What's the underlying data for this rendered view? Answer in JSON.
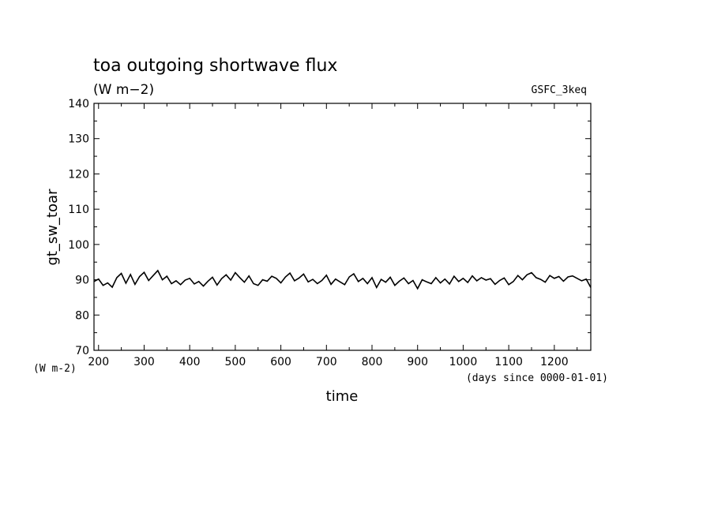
{
  "chart_data": {
    "type": "line",
    "title": "toa outgoing shortwave flux",
    "subtitle": "(W m−2)",
    "dataset_label": "GSFC_3keq",
    "ylabel": "gt_sw_toar",
    "yunits": "(W m-2)",
    "xlabel": "time",
    "xunits": "(days since 0000-01-01)",
    "xlim": [
      190,
      1280
    ],
    "ylim": [
      70,
      140
    ],
    "xticks": [
      200,
      300,
      400,
      500,
      600,
      700,
      800,
      900,
      1000,
      1100,
      1200
    ],
    "yticks": [
      70,
      80,
      90,
      100,
      110,
      120,
      130,
      140
    ],
    "grid": false,
    "line_color": "#000000",
    "series": [
      {
        "x": [
          190,
          200,
          210,
          220,
          230,
          240,
          250,
          260,
          270,
          280,
          290,
          300,
          310,
          320,
          330,
          340,
          350,
          360,
          370,
          380,
          390,
          400,
          410,
          420,
          430,
          440,
          450,
          460,
          470,
          480,
          490,
          500,
          510,
          520,
          530,
          540,
          550,
          560,
          570,
          580,
          590,
          600,
          610,
          620,
          630,
          640,
          650,
          660,
          670,
          680,
          690,
          700,
          710,
          720,
          730,
          740,
          750,
          760,
          770,
          780,
          790,
          800,
          810,
          820,
          830,
          840,
          850,
          860,
          870,
          880,
          890,
          900,
          910,
          920,
          930,
          940,
          950,
          960,
          970,
          980,
          990,
          1000,
          1010,
          1020,
          1030,
          1040,
          1050,
          1060,
          1070,
          1080,
          1090,
          1100,
          1110,
          1120,
          1130,
          1140,
          1150,
          1160,
          1170,
          1180,
          1190,
          1200,
          1210,
          1220,
          1230,
          1240,
          1250,
          1260,
          1270,
          1280
        ],
        "values": [
          89.5,
          90.2,
          88.4,
          89.1,
          87.9,
          90.6,
          91.8,
          89.0,
          91.5,
          88.7,
          90.9,
          92.1,
          89.8,
          91.2,
          92.6,
          90.0,
          91.0,
          88.9,
          89.7,
          88.6,
          89.9,
          90.4,
          88.8,
          89.5,
          88.2,
          89.6,
          90.7,
          88.5,
          90.3,
          91.4,
          89.9,
          92.0,
          90.6,
          89.3,
          91.1,
          88.9,
          88.4,
          90.0,
          89.6,
          91.0,
          90.4,
          89.1,
          90.8,
          91.9,
          89.7,
          90.5,
          91.6,
          89.4,
          90.1,
          88.9,
          89.8,
          91.3,
          88.7,
          90.2,
          89.4,
          88.6,
          90.8,
          91.7,
          89.5,
          90.4,
          88.9,
          90.6,
          87.8,
          90.1,
          89.3,
          90.7,
          88.4,
          89.6,
          90.5,
          88.9,
          89.8,
          87.5,
          90.0,
          89.4,
          88.9,
          90.6,
          89.1,
          90.2,
          88.8,
          91.0,
          89.5,
          90.4,
          89.2,
          91.1,
          89.7,
          90.6,
          89.9,
          90.3,
          88.7,
          89.8,
          90.5,
          88.6,
          89.5,
          91.2,
          90.0,
          91.4,
          92.0,
          90.6,
          90.1,
          89.3,
          91.2,
          90.4,
          90.9,
          89.6,
          90.8,
          91.1,
          90.4,
          89.7,
          90.2,
          87.8
        ]
      }
    ]
  }
}
